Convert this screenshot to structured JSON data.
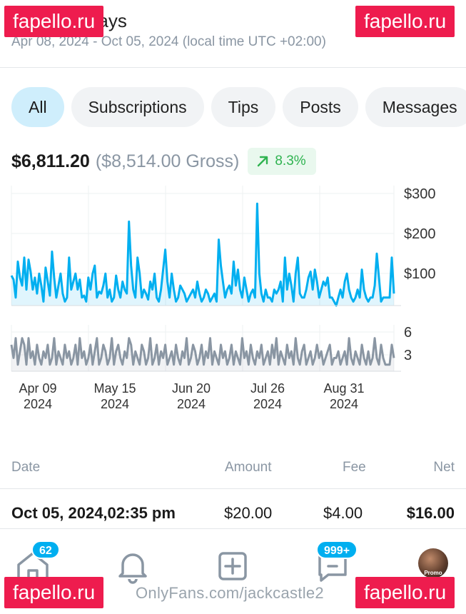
{
  "header": {
    "title": "Last 180 days",
    "range": "Apr 08, 2024 - Oct 05, 2024 (local time UTC +02:00)"
  },
  "filters": [
    {
      "label": "All",
      "active": true
    },
    {
      "label": "Subscriptions",
      "active": false
    },
    {
      "label": "Tips",
      "active": false
    },
    {
      "label": "Posts",
      "active": false
    },
    {
      "label": "Messages",
      "active": false
    }
  ],
  "summary": {
    "net": "$6,811.20",
    "gross": "($8,514.00 Gross)",
    "change": "8.3%",
    "change_color": "#2fb350"
  },
  "chart_data": [
    {
      "type": "area",
      "y_ticks": [
        "$300",
        "$200",
        "$100"
      ],
      "ylim": [
        0,
        300
      ],
      "color": "#00aff0",
      "x_labels": [
        {
          "top": "Apr 09",
          "bottom": "2024"
        },
        {
          "top": "May 15",
          "bottom": "2024"
        },
        {
          "top": "Jun 20",
          "bottom": "2024"
        },
        {
          "top": "Jul 26",
          "bottom": "2024"
        },
        {
          "top": "Aug 31",
          "bottom": "2024"
        }
      ],
      "values": [
        75,
        65,
        20,
        110,
        70,
        50,
        120,
        40,
        115,
        85,
        40,
        70,
        30,
        80,
        50,
        10,
        95,
        60,
        25,
        135,
        70,
        20,
        50,
        80,
        30,
        10,
        20,
        120,
        40,
        60,
        80,
        40,
        65,
        20,
        25,
        10,
        70,
        40,
        80,
        100,
        20,
        35,
        30,
        50,
        80,
        20,
        40,
        10,
        20,
        75,
        40,
        20,
        60,
        40,
        30,
        210,
        100,
        40,
        20,
        120,
        80,
        20,
        40,
        30,
        15,
        60,
        40,
        80,
        20,
        10,
        40,
        90,
        140,
        60,
        20,
        80,
        40,
        10,
        20,
        50,
        40,
        30,
        10,
        20,
        30,
        40,
        20,
        60,
        30,
        10,
        20,
        40,
        30,
        10,
        20,
        30,
        10,
        165,
        100,
        60,
        20,
        40,
        50,
        30,
        110,
        50,
        90,
        40,
        20,
        70,
        40,
        10,
        30,
        40,
        20,
        255,
        80,
        30,
        10,
        40,
        20,
        20,
        10,
        40,
        30,
        40,
        60,
        10,
        120,
        40,
        80,
        50,
        10,
        80,
        120,
        30,
        20,
        20,
        40,
        70,
        85,
        40,
        90,
        60,
        20,
        40,
        60,
        50,
        70,
        20,
        20,
        10,
        0,
        20,
        40,
        20,
        60,
        80,
        40,
        20,
        10,
        20,
        40,
        20,
        90,
        40,
        20,
        10,
        20,
        20,
        50,
        130,
        70,
        10,
        20,
        20,
        20,
        20,
        120,
        30
      ]
    },
    {
      "type": "area",
      "y_ticks": [
        "6",
        "3"
      ],
      "ylim": [
        0,
        7
      ],
      "color": "#8a96a3",
      "values": [
        4,
        2,
        5,
        1,
        3,
        5,
        4,
        1,
        5,
        2,
        3,
        1,
        4,
        2,
        1,
        3,
        2,
        4,
        1,
        2,
        5,
        1,
        3,
        2,
        1,
        4,
        2,
        3,
        1,
        2,
        4,
        1,
        5,
        2,
        3,
        1,
        2,
        4,
        1,
        3,
        5,
        1,
        2,
        4,
        3,
        1,
        2,
        5,
        1,
        3,
        4,
        2,
        1,
        3,
        2,
        5,
        4,
        1,
        3,
        2,
        1,
        4,
        3,
        1,
        2,
        5,
        1,
        2,
        4,
        1,
        3,
        2,
        4,
        1,
        2,
        3,
        1,
        4,
        2,
        1,
        3,
        2,
        5,
        1,
        2,
        4,
        3,
        1,
        2,
        4,
        1,
        3,
        2,
        5,
        1,
        3,
        2,
        1,
        4,
        2,
        3,
        1,
        2,
        4,
        1,
        3,
        2,
        1,
        5,
        2,
        3,
        1,
        4,
        2,
        1,
        3,
        2,
        4,
        1,
        2,
        3,
        1,
        4,
        2,
        5,
        1,
        3,
        2,
        1,
        4,
        2,
        3,
        1,
        5,
        2,
        1,
        3,
        4,
        1,
        2,
        3,
        1,
        2,
        4,
        2,
        3,
        1,
        2,
        3,
        4,
        1,
        2,
        2,
        3,
        1,
        2,
        3,
        1,
        5,
        2,
        1,
        3,
        2,
        1,
        4,
        2,
        1,
        3,
        1,
        2,
        5,
        2,
        1,
        4,
        2,
        1,
        1,
        1,
        4,
        2
      ]
    }
  ],
  "table": {
    "headers": {
      "date": "Date",
      "amount": "Amount",
      "fee": "Fee",
      "net": "Net"
    },
    "rows": [
      {
        "date": "Oct 05, 2024,02:35 pm",
        "amount": "$20.00",
        "fee": "$4.00",
        "net": "$16.00"
      }
    ]
  },
  "nav": {
    "home_badge": "62",
    "messages_badge": "999+",
    "avatar_label": "Promo"
  },
  "watermarks": {
    "site": "fapello.ru",
    "url": "OnlyFans.com/jackcastle2"
  },
  "colors": {
    "accent": "#00aff0",
    "watermark": "#ee1c4e"
  }
}
